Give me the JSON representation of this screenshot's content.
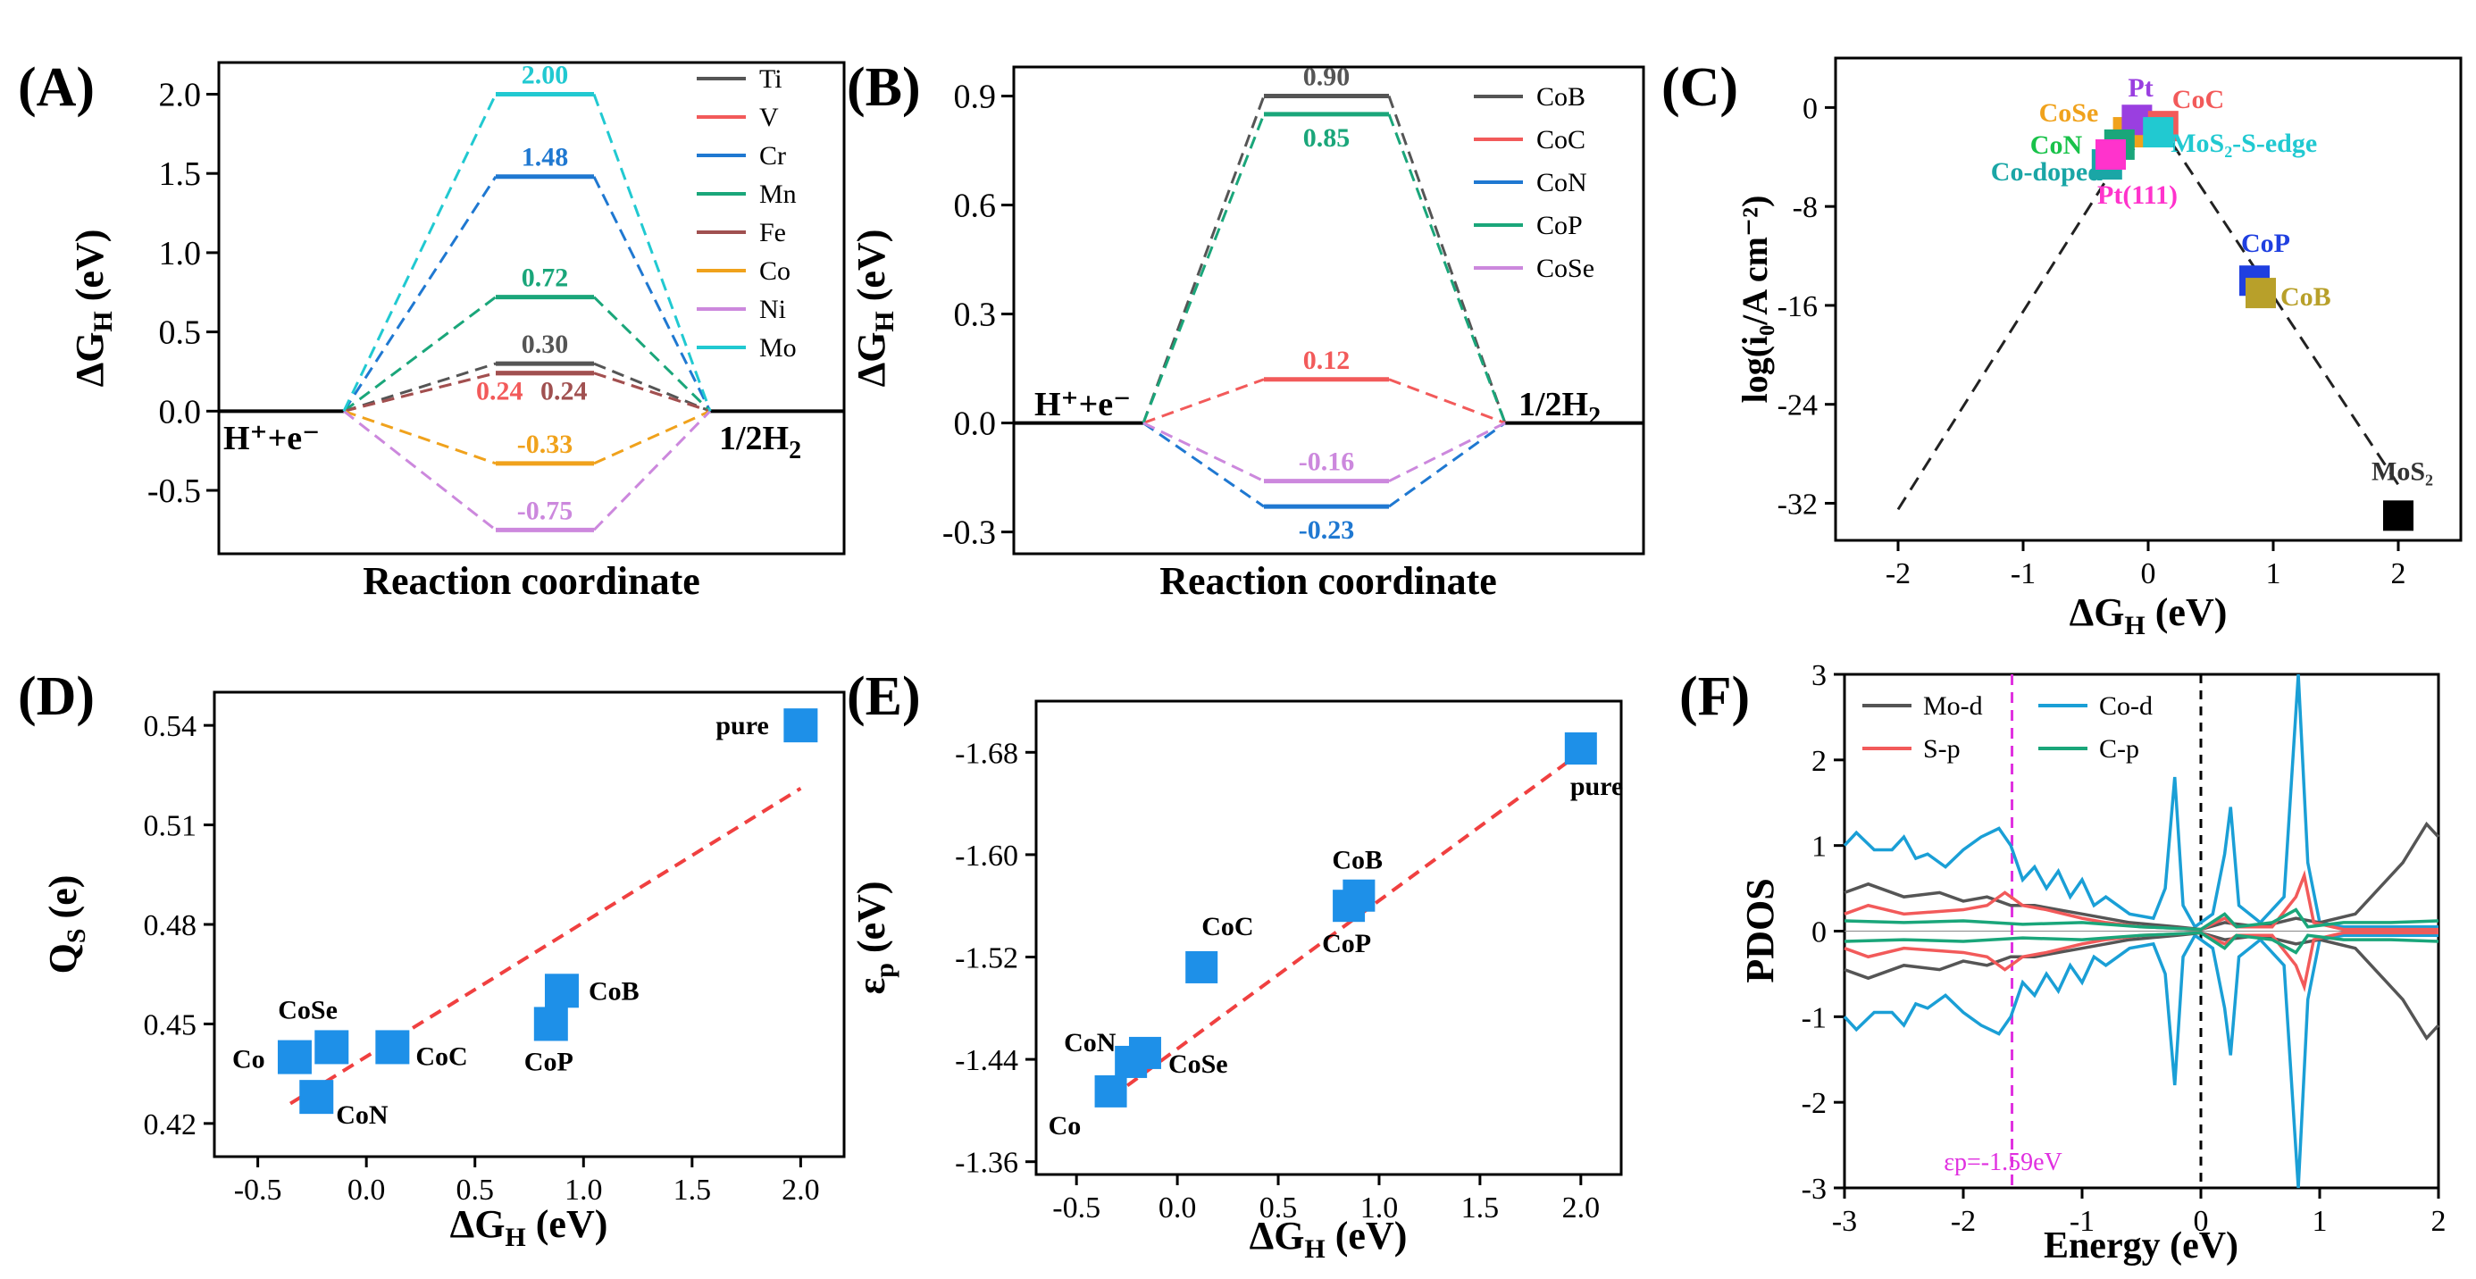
{
  "chart_data": [
    {
      "id": "A",
      "type": "line",
      "panel_label": "(A)",
      "xlabel": "Reaction coordinate",
      "ylabel_main": "ΔG",
      "ylabel_sub": "H",
      "ylabel_unit": " (eV)",
      "ylim": [
        -0.9,
        2.2
      ],
      "yticks": [
        -0.5,
        0.0,
        0.5,
        1.0,
        1.5,
        2.0
      ],
      "ytick_labels": [
        "-0.5",
        "0.0",
        "0.5",
        "1.0",
        "1.5",
        "2.0"
      ],
      "left_state": "H⁺+e⁻",
      "right_state_main": "1/2H",
      "right_state_sub": "2",
      "series": [
        {
          "name": "Ti",
          "value": 0.3,
          "label": "0.30",
          "color": "#555555"
        },
        {
          "name": "V",
          "value": 0.24,
          "label": "0.24",
          "color": "#f25a5a"
        },
        {
          "name": "Cr",
          "value": 1.48,
          "label": "1.48",
          "color": "#1f78d1"
        },
        {
          "name": "Mn",
          "value": 0.72,
          "label": "0.72",
          "color": "#1aa67a"
        },
        {
          "name": "Fe",
          "value": 0.24,
          "label": "0.24",
          "color": "#a05050"
        },
        {
          "name": "Co",
          "value": -0.33,
          "label": "-0.33",
          "color": "#f0a21c"
        },
        {
          "name": "Ni",
          "value": -0.75,
          "label": "-0.75",
          "color": "#cc88dd"
        },
        {
          "name": "Mo",
          "value": 2.0,
          "label": "2.00",
          "color": "#21c9d1"
        }
      ]
    },
    {
      "id": "B",
      "type": "line",
      "panel_label": "(B)",
      "xlabel": "Reaction coordinate",
      "ylabel_main": "ΔG",
      "ylabel_sub": "H",
      "ylabel_unit": " (eV)",
      "ylim": [
        -0.36,
        0.98
      ],
      "yticks": [
        -0.3,
        0.0,
        0.3,
        0.6,
        0.9
      ],
      "ytick_labels": [
        "-0.3",
        "0.0",
        "0.3",
        "0.6",
        "0.9"
      ],
      "left_state": "H⁺+e⁻",
      "right_state_main": "1/2H",
      "right_state_sub": "2",
      "series": [
        {
          "name": "CoB",
          "value": 0.9,
          "label": "0.90",
          "color": "#555555"
        },
        {
          "name": "CoC",
          "value": 0.12,
          "label": "0.12",
          "color": "#f25a5a"
        },
        {
          "name": "CoN",
          "value": -0.23,
          "label": "-0.23",
          "color": "#1f78d1"
        },
        {
          "name": "CoP",
          "value": 0.85,
          "label": "0.85",
          "color": "#1aa67a"
        },
        {
          "name": "CoSe",
          "value": -0.16,
          "label": "-0.16",
          "color": "#cc88dd"
        }
      ]
    },
    {
      "id": "C",
      "type": "scatter",
      "panel_label": "(C)",
      "xlabel_main": "ΔG",
      "xlabel_sub": "H",
      "xlabel_unit": " (eV)",
      "ylabel": "log(i₀/A cm⁻²)",
      "xlim": [
        -2.5,
        2.5
      ],
      "ylim": [
        -35,
        4
      ],
      "xticks": [
        -2,
        -1,
        0,
        1,
        2
      ],
      "xtick_labels": [
        "-2",
        "-1",
        "0",
        "1",
        "2"
      ],
      "yticks": [
        0,
        -8,
        -16,
        -24,
        -32
      ],
      "ytick_labels": [
        "0",
        "-8",
        "-16",
        "-24",
        "-32"
      ],
      "volcano_line": [
        [
          -2.0,
          -32.5
        ],
        [
          -0.25,
          -4.5
        ],
        [
          0.1,
          -1.5
        ],
        [
          2.0,
          -30.5
        ]
      ],
      "points": [
        {
          "name": "CoSe",
          "x": -0.16,
          "y": -2.0,
          "color": "#f0a21c",
          "label_color": "#f0a21c"
        },
        {
          "name": "Pt",
          "x": -0.09,
          "y": -1.0,
          "color": "#9a3fe0",
          "label_color": "#9a3fe0"
        },
        {
          "name": "CoC",
          "x": 0.12,
          "y": -1.5,
          "color": "#f25a5a",
          "label_color": "#f25a5a"
        },
        {
          "name": "CoN",
          "x": -0.23,
          "y": -3.0,
          "color": "#1aa67a",
          "label_color": "#19c24a"
        },
        {
          "name": "MoS₂-S-edge",
          "x": 0.08,
          "y": -2.0,
          "color": "#21c9d1",
          "label_color": "#21c9d1"
        },
        {
          "name": "Co-doped",
          "x": -0.33,
          "y": -4.6,
          "color": "#1aa6a6",
          "label_color": "#1aa6a6"
        },
        {
          "name": "Pt(111)",
          "x": -0.3,
          "y": -3.8,
          "color": "#ff33cc",
          "label_color": "#ff33cc"
        },
        {
          "name": "CoP",
          "x": 0.85,
          "y": -14.0,
          "color": "#1f3fe0",
          "label_color": "#1f3fe0"
        },
        {
          "name": "CoB",
          "x": 0.9,
          "y": -15.0,
          "color": "#b8a02a",
          "label_color": "#b8a02a"
        },
        {
          "name": "MoS₂",
          "x": 2.0,
          "y": -33.0,
          "color": "#000000",
          "label_color": "#333333"
        }
      ]
    },
    {
      "id": "D",
      "type": "scatter",
      "panel_label": "(D)",
      "xlabel_main": "ΔG",
      "xlabel_sub": "H",
      "xlabel_unit": " (eV)",
      "ylabel_main": "Q",
      "ylabel_sub": "S",
      "ylabel_unit": " (e)",
      "xlim": [
        -0.7,
        2.2
      ],
      "ylim": [
        0.41,
        0.55
      ],
      "xticks": [
        -0.5,
        0.0,
        0.5,
        1.0,
        1.5,
        2.0
      ],
      "xtick_labels": [
        "-0.5",
        "0.0",
        "0.5",
        "1.0",
        "1.5",
        "2.0"
      ],
      "yticks": [
        0.42,
        0.45,
        0.48,
        0.51,
        0.54
      ],
      "ytick_labels": [
        "0.42",
        "0.45",
        "0.48",
        "0.51",
        "0.54"
      ],
      "fit_line": [
        [
          -0.35,
          0.426
        ],
        [
          2.0,
          0.521
        ]
      ],
      "points": [
        {
          "name": "Co",
          "x": -0.33,
          "y": 0.44
        },
        {
          "name": "CoSe",
          "x": -0.16,
          "y": 0.443
        },
        {
          "name": "CoN",
          "x": -0.23,
          "y": 0.428
        },
        {
          "name": "CoC",
          "x": 0.12,
          "y": 0.443
        },
        {
          "name": "CoP",
          "x": 0.85,
          "y": 0.45
        },
        {
          "name": "CoB",
          "x": 0.9,
          "y": 0.46
        },
        {
          "name": "pure",
          "x": 2.0,
          "y": 0.54
        }
      ]
    },
    {
      "id": "E",
      "type": "scatter",
      "panel_label": "(E)",
      "xlabel_main": "ΔG",
      "xlabel_sub": "H",
      "xlabel_unit": " (eV)",
      "ylabel_main": "ε",
      "ylabel_sub": "p",
      "ylabel_unit": " (eV)",
      "xlim": [
        -0.7,
        2.2
      ],
      "ylim": [
        -1.35,
        -1.72
      ],
      "xticks": [
        -0.5,
        0.0,
        0.5,
        1.0,
        1.5,
        2.0
      ],
      "xtick_labels": [
        "-0.5",
        "0.0",
        "0.5",
        "1.0",
        "1.5",
        "2.0"
      ],
      "yticks": [
        -1.36,
        -1.44,
        -1.52,
        -1.6,
        -1.68
      ],
      "ytick_labels": [
        "-1.36",
        "-1.44",
        "-1.52",
        "-1.60",
        "-1.68"
      ],
      "fit_line": [
        [
          -0.33,
          -1.41
        ],
        [
          2.0,
          -1.68
        ]
      ],
      "points": [
        {
          "name": "Co",
          "x": -0.33,
          "y": -1.415
        },
        {
          "name": "CoN",
          "x": -0.23,
          "y": -1.438
        },
        {
          "name": "CoSe",
          "x": -0.16,
          "y": -1.445
        },
        {
          "name": "CoC",
          "x": 0.12,
          "y": -1.512
        },
        {
          "name": "CoP",
          "x": 0.85,
          "y": -1.56
        },
        {
          "name": "CoB",
          "x": 0.9,
          "y": -1.568
        },
        {
          "name": "pure",
          "x": 2.0,
          "y": -1.683
        }
      ]
    },
    {
      "id": "F",
      "type": "line",
      "panel_label": "(F)",
      "xlabel": "Energy (eV)",
      "ylabel": "PDOS",
      "xlim": [
        -3,
        2
      ],
      "ylim": [
        -3,
        3
      ],
      "xticks": [
        -3,
        -2,
        -1,
        0,
        1,
        2
      ],
      "xtick_labels": [
        "-3",
        "-2",
        "-1",
        "0",
        "1",
        "2"
      ],
      "yticks": [
        -3,
        -2,
        -1,
        0,
        1,
        2,
        3
      ],
      "ytick_labels": [
        "-3",
        "-2",
        "-1",
        "0",
        "1",
        "2",
        "3"
      ],
      "epsilon_label": "εp=-1.59eV",
      "epsilon_value": -1.59,
      "fermi_level": 0,
      "legend": [
        {
          "name": "Mo-d",
          "color": "#555555"
        },
        {
          "name": "Co-d",
          "color": "#1a9fd6"
        },
        {
          "name": "S-p",
          "color": "#f25a5a"
        },
        {
          "name": "C-p",
          "color": "#1aa67a"
        }
      ],
      "series": [
        {
          "name": "Co-d",
          "color": "#1a9fd6",
          "points": [
            [
              -3,
              1.0
            ],
            [
              -2.9,
              1.15
            ],
            [
              -2.75,
              0.95
            ],
            [
              -2.6,
              0.95
            ],
            [
              -2.5,
              1.1
            ],
            [
              -2.4,
              0.85
            ],
            [
              -2.3,
              0.9
            ],
            [
              -2.15,
              0.75
            ],
            [
              -2.0,
              0.95
            ],
            [
              -1.85,
              1.1
            ],
            [
              -1.7,
              1.2
            ],
            [
              -1.6,
              1.0
            ],
            [
              -1.5,
              0.6
            ],
            [
              -1.4,
              0.75
            ],
            [
              -1.3,
              0.5
            ],
            [
              -1.2,
              0.7
            ],
            [
              -1.1,
              0.4
            ],
            [
              -1.0,
              0.6
            ],
            [
              -0.9,
              0.3
            ],
            [
              -0.8,
              0.4
            ],
            [
              -0.6,
              0.2
            ],
            [
              -0.4,
              0.15
            ],
            [
              -0.3,
              0.5
            ],
            [
              -0.22,
              1.8
            ],
            [
              -0.15,
              0.3
            ],
            [
              -0.05,
              0.05
            ],
            [
              0.1,
              0.2
            ],
            [
              0.2,
              0.9
            ],
            [
              0.25,
              1.45
            ],
            [
              0.32,
              0.3
            ],
            [
              0.5,
              0.1
            ],
            [
              0.7,
              0.4
            ],
            [
              0.82,
              3.0
            ],
            [
              0.9,
              0.8
            ],
            [
              1.0,
              0.1
            ],
            [
              1.2,
              0.05
            ],
            [
              1.5,
              0.05
            ],
            [
              2.0,
              0.05
            ]
          ]
        },
        {
          "name": "Mo-d",
          "color": "#555555",
          "points": [
            [
              -3,
              0.45
            ],
            [
              -2.8,
              0.55
            ],
            [
              -2.5,
              0.4
            ],
            [
              -2.2,
              0.45
            ],
            [
              -2.0,
              0.35
            ],
            [
              -1.8,
              0.4
            ],
            [
              -1.6,
              0.3
            ],
            [
              -1.4,
              0.3
            ],
            [
              -1.2,
              0.25
            ],
            [
              -1.0,
              0.2
            ],
            [
              -0.6,
              0.1
            ],
            [
              -0.2,
              0.05
            ],
            [
              0,
              0.02
            ],
            [
              0.2,
              0.1
            ],
            [
              0.5,
              0.05
            ],
            [
              0.8,
              0.15
            ],
            [
              1.0,
              0.1
            ],
            [
              1.3,
              0.2
            ],
            [
              1.5,
              0.5
            ],
            [
              1.7,
              0.8
            ],
            [
              1.9,
              1.25
            ],
            [
              2.0,
              1.1
            ]
          ]
        },
        {
          "name": "S-p",
          "color": "#f25a5a",
          "points": [
            [
              -3,
              0.2
            ],
            [
              -2.8,
              0.3
            ],
            [
              -2.5,
              0.2
            ],
            [
              -2.0,
              0.25
            ],
            [
              -1.8,
              0.3
            ],
            [
              -1.65,
              0.45
            ],
            [
              -1.5,
              0.3
            ],
            [
              -1.3,
              0.25
            ],
            [
              -1.0,
              0.15
            ],
            [
              -0.8,
              0.1
            ],
            [
              -0.5,
              0.05
            ],
            [
              0,
              0.02
            ],
            [
              0.2,
              0.15
            ],
            [
              0.3,
              0.05
            ],
            [
              0.6,
              0.05
            ],
            [
              0.8,
              0.4
            ],
            [
              0.87,
              0.65
            ],
            [
              0.95,
              0.1
            ],
            [
              1.2,
              0.02
            ],
            [
              2.0,
              0.02
            ]
          ]
        },
        {
          "name": "C-p",
          "color": "#1aa67a",
          "points": [
            [
              -3,
              0.12
            ],
            [
              -2.5,
              0.1
            ],
            [
              -2.0,
              0.12
            ],
            [
              -1.5,
              0.08
            ],
            [
              -1.0,
              0.1
            ],
            [
              -0.5,
              0.05
            ],
            [
              0,
              0.02
            ],
            [
              0.2,
              0.2
            ],
            [
              0.3,
              0.05
            ],
            [
              0.6,
              0.1
            ],
            [
              0.8,
              0.25
            ],
            [
              0.9,
              0.05
            ],
            [
              1.2,
              0.1
            ],
            [
              1.6,
              0.1
            ],
            [
              2.0,
              0.12
            ]
          ]
        }
      ]
    }
  ]
}
